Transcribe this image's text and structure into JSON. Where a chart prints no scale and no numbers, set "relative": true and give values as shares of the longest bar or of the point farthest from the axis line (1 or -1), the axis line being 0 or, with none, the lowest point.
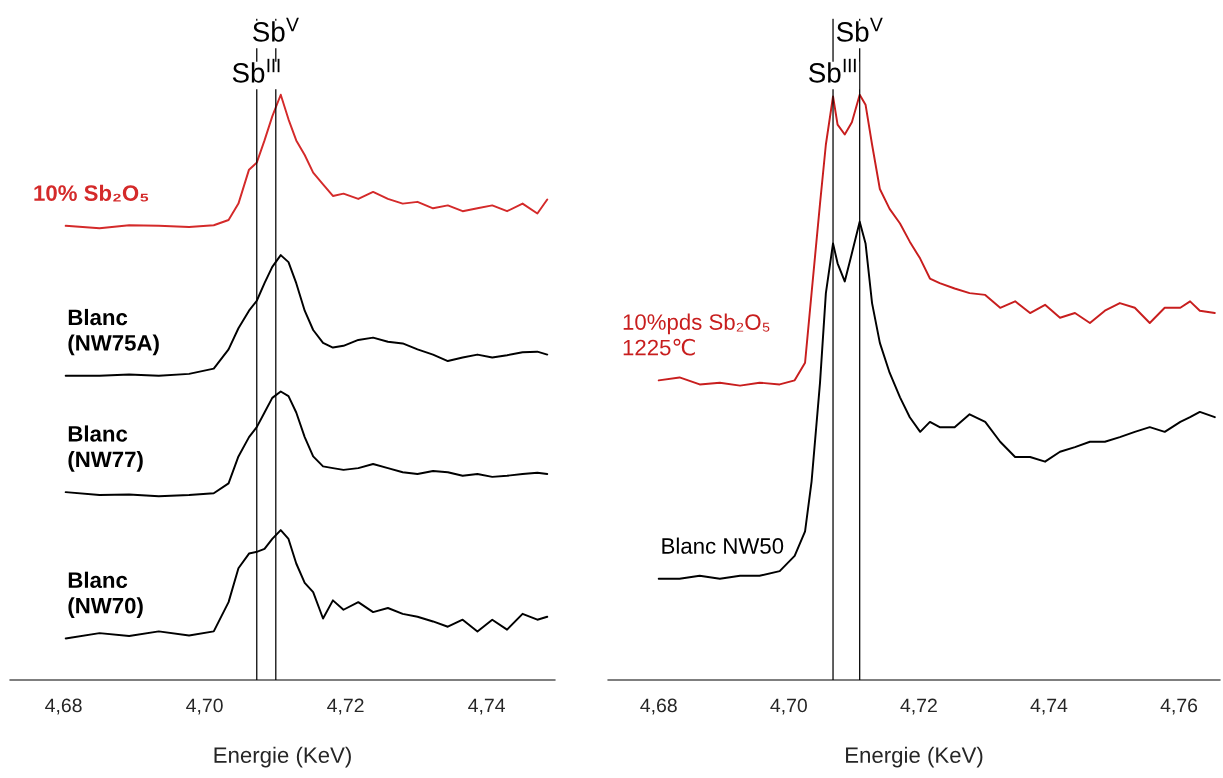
{
  "chart_data": [
    {
      "type": "line",
      "relative": true,
      "xlabel": "Energie (KeV)",
      "xlim": [
        4.6724,
        4.7497
      ],
      "xticks": [
        {
          "value": 4.68,
          "label": "4,68"
        },
        {
          "value": 4.7,
          "label": "4,70"
        },
        {
          "value": 4.72,
          "label": "4,72"
        },
        {
          "value": 4.74,
          "label": "4,74"
        }
      ],
      "x": [
        4.6803,
        4.6851,
        4.6893,
        4.6935,
        4.6978,
        4.7013,
        4.7034,
        4.7048,
        4.7063,
        4.7074,
        4.7085,
        4.7096,
        4.7108,
        4.7119,
        4.713,
        4.7142,
        4.7154,
        4.7168,
        4.7182,
        4.7197,
        4.7218,
        4.7239,
        4.726,
        4.7281,
        4.7302,
        4.7324,
        4.7345,
        4.7366,
        4.7387,
        4.7408,
        4.7429,
        4.7451,
        4.7472,
        4.7486
      ],
      "series": [
        {
          "name": "10% Sb₂O₅",
          "color": "#d42a2a",
          "values": [
            0.776,
            0.772,
            0.777,
            0.776,
            0.774,
            0.777,
            0.786,
            0.814,
            0.872,
            0.884,
            0.922,
            0.963,
            1.0,
            0.958,
            0.922,
            0.897,
            0.867,
            0.847,
            0.827,
            0.831,
            0.822,
            0.834,
            0.822,
            0.814,
            0.817,
            0.806,
            0.811,
            0.801,
            0.806,
            0.811,
            0.801,
            0.814,
            0.797,
            0.821
          ]
        },
        {
          "name": "Blanc\n(NW75A)",
          "color": "#000000",
          "values": [
            0.52,
            0.52,
            0.522,
            0.52,
            0.523,
            0.532,
            0.565,
            0.601,
            0.631,
            0.648,
            0.678,
            0.706,
            0.726,
            0.714,
            0.678,
            0.631,
            0.598,
            0.576,
            0.568,
            0.571,
            0.581,
            0.585,
            0.578,
            0.575,
            0.565,
            0.556,
            0.545,
            0.551,
            0.556,
            0.551,
            0.555,
            0.56,
            0.561,
            0.556
          ]
        },
        {
          "name": "Blanc\n(NW77)",
          "color": "#000000",
          "values": [
            0.321,
            0.316,
            0.317,
            0.314,
            0.316,
            0.319,
            0.336,
            0.382,
            0.415,
            0.432,
            0.457,
            0.482,
            0.493,
            0.485,
            0.457,
            0.415,
            0.382,
            0.365,
            0.362,
            0.359,
            0.362,
            0.369,
            0.362,
            0.355,
            0.352,
            0.357,
            0.355,
            0.349,
            0.352,
            0.347,
            0.349,
            0.352,
            0.354,
            0.352
          ]
        },
        {
          "name": "Blanc\n(NW70)",
          "color": "#000000",
          "values": [
            0.071,
            0.08,
            0.075,
            0.083,
            0.076,
            0.083,
            0.133,
            0.191,
            0.216,
            0.219,
            0.224,
            0.241,
            0.256,
            0.241,
            0.199,
            0.166,
            0.15,
            0.105,
            0.136,
            0.12,
            0.133,
            0.116,
            0.123,
            0.113,
            0.108,
            0.1,
            0.091,
            0.103,
            0.083,
            0.103,
            0.086,
            0.113,
            0.103,
            0.108
          ]
        }
      ],
      "ref_lines": [
        {
          "axis": "x",
          "value": 4.7074,
          "label": "Sb$^{III}$",
          "color": "#000000"
        },
        {
          "axis": "x",
          "value": 4.7101,
          "label": "Sb$^{V}$",
          "color": "#000000"
        }
      ],
      "legend": false,
      "grid": false
    },
    {
      "type": "line",
      "relative": true,
      "xlabel": "Energie (KeV)",
      "xlim": [
        4.6722,
        4.7663
      ],
      "xticks": [
        {
          "value": 4.68,
          "label": "4,68"
        },
        {
          "value": 4.7,
          "label": "4,70"
        },
        {
          "value": 4.72,
          "label": "4,72"
        },
        {
          "value": 4.74,
          "label": "4,74"
        },
        {
          "value": 4.76,
          "label": "4,76"
        }
      ],
      "x": [
        4.68,
        4.6832,
        4.6863,
        4.6894,
        4.6925,
        4.6955,
        4.6986,
        4.7009,
        4.7025,
        4.7035,
        4.7048,
        4.7057,
        4.7068,
        4.7075,
        4.7086,
        4.7097,
        4.7109,
        4.7118,
        4.7128,
        4.714,
        4.7155,
        4.7171,
        4.7186,
        4.7202,
        4.7217,
        4.7232,
        4.7255,
        4.7278,
        4.7302,
        4.7325,
        4.7348,
        4.7371,
        4.7394,
        4.7417,
        4.744,
        4.7463,
        4.7486,
        4.7509,
        4.7532,
        4.7555,
        4.7578,
        4.7602,
        4.7617,
        4.7632,
        4.7655
      ],
      "series": [
        {
          "name": "10%pds Sb₂O₅\n1225℃",
          "color": "#c81e1e",
          "values": [
            0.512,
            0.517,
            0.505,
            0.508,
            0.503,
            0.508,
            0.505,
            0.512,
            0.542,
            0.661,
            0.814,
            0.915,
            0.997,
            0.949,
            0.932,
            0.953,
            1.0,
            0.983,
            0.915,
            0.839,
            0.805,
            0.78,
            0.749,
            0.72,
            0.686,
            0.678,
            0.669,
            0.661,
            0.658,
            0.636,
            0.647,
            0.627,
            0.641,
            0.619,
            0.627,
            0.61,
            0.631,
            0.644,
            0.636,
            0.61,
            0.636,
            0.636,
            0.647,
            0.631,
            0.627
          ]
        },
        {
          "name": "Blanc NW50",
          "color": "#000000",
          "values": [
            0.173,
            0.173,
            0.178,
            0.173,
            0.178,
            0.178,
            0.186,
            0.212,
            0.254,
            0.339,
            0.508,
            0.661,
            0.746,
            0.712,
            0.681,
            0.729,
            0.783,
            0.746,
            0.644,
            0.576,
            0.525,
            0.483,
            0.449,
            0.424,
            0.441,
            0.432,
            0.432,
            0.454,
            0.441,
            0.407,
            0.381,
            0.381,
            0.373,
            0.39,
            0.398,
            0.407,
            0.407,
            0.415,
            0.424,
            0.432,
            0.424,
            0.441,
            0.449,
            0.458,
            0.449
          ]
        }
      ],
      "ref_lines": [
        {
          "axis": "x",
          "value": 4.7068,
          "label": "Sb$^{III}$",
          "color": "#000000"
        },
        {
          "axis": "x",
          "value": 4.7109,
          "label": "Sb$^{V}$",
          "color": "#000000"
        }
      ],
      "legend": false,
      "grid": false
    }
  ]
}
